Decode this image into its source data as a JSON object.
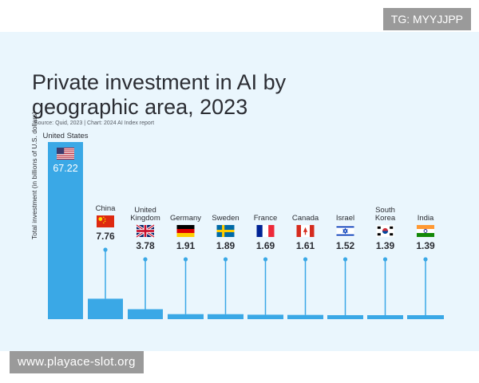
{
  "watermark_top": "TG: MYYJJPP",
  "watermark_bottom": "www.playace-slot.org",
  "colors": {
    "bar": "#3aa8e6",
    "card_bg": "#eaf6fd",
    "text": "#2b2d33"
  },
  "chart_data": {
    "type": "bar",
    "title": "Private investment in AI by\ngeographic area, 2023",
    "subtitle": "Source: Quid, 2023 | Chart: 2024 AI Index report",
    "xlabel": "",
    "ylabel": "Total investment (in billions of U.S. dollars)",
    "categories": [
      "United States",
      "China",
      "United\nKingdom",
      "Germany",
      "Sweden",
      "France",
      "Canada",
      "Israel",
      "South\nKorea",
      "India"
    ],
    "values": [
      67.22,
      7.76,
      3.78,
      1.91,
      1.89,
      1.69,
      1.61,
      1.52,
      1.39,
      1.39
    ],
    "value_labels": [
      "67.22",
      "7.76",
      "3.78",
      "1.91",
      "1.89",
      "1.69",
      "1.61",
      "1.52",
      "1.39",
      "1.39"
    ],
    "flag_icons": [
      "flag-us-icon",
      "flag-cn-icon",
      "flag-gb-icon",
      "flag-de-icon",
      "flag-se-icon",
      "flag-fr-icon",
      "flag-ca-icon",
      "flag-il-icon",
      "flag-kr-icon",
      "flag-in-icon"
    ],
    "ylim": [
      0,
      67.22
    ],
    "grid": false,
    "legend": "none"
  }
}
